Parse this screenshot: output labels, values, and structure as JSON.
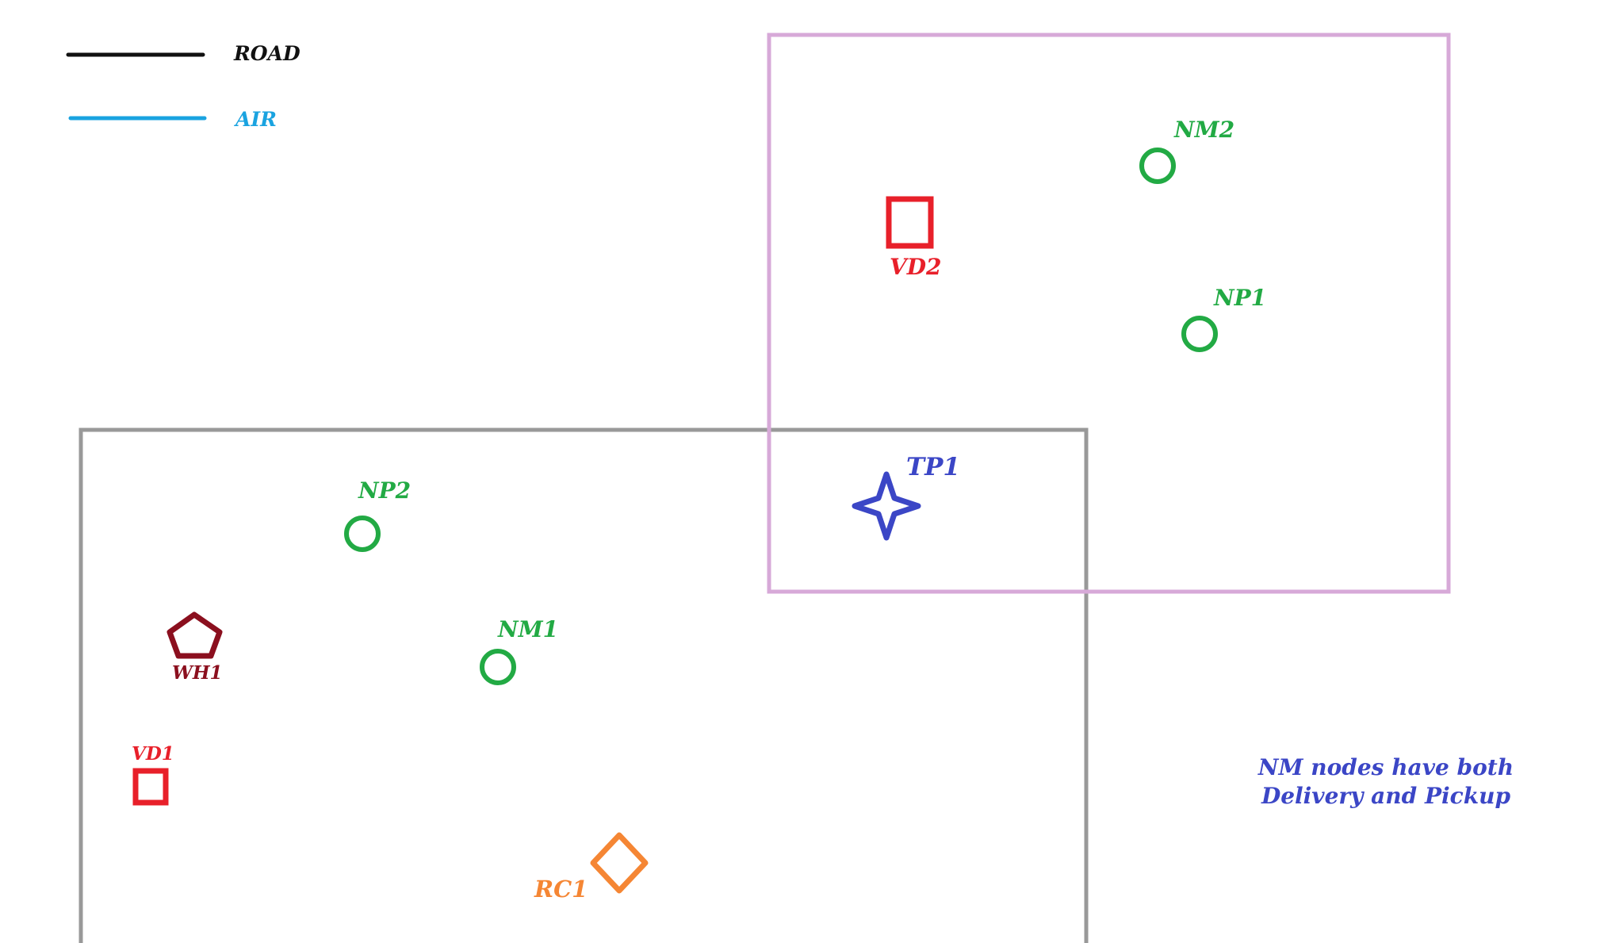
{
  "legend": {
    "road": {
      "label": "ROAD",
      "color": "#111111"
    },
    "air": {
      "label": "AIR",
      "color": "#1aa3e0"
    }
  },
  "zones": {
    "zone_a": {
      "color": "#999999"
    },
    "zone_b": {
      "color": "#d7a9d8"
    }
  },
  "nodes": {
    "nm2": {
      "label": "NM2",
      "kind": "circle",
      "color": "#22aa44"
    },
    "vd2": {
      "label": "VD2",
      "kind": "square",
      "color": "#e8202a"
    },
    "np1": {
      "label": "NP1",
      "kind": "circle",
      "color": "#22aa44"
    },
    "tp1": {
      "label": "TP1",
      "kind": "star",
      "color": "#3b46c6"
    },
    "np2": {
      "label": "NP2",
      "kind": "circle",
      "color": "#22aa44"
    },
    "wh1": {
      "label": "WH1",
      "kind": "pentagon",
      "color": "#8b0f1e"
    },
    "nm1": {
      "label": "NM1",
      "kind": "circle",
      "color": "#22aa44"
    },
    "vd1": {
      "label": "VD1",
      "kind": "square",
      "color": "#e8202a"
    },
    "rc1": {
      "label": "RC1",
      "kind": "diamond",
      "color": "#f58634"
    }
  },
  "note": {
    "line1": "NM nodes have both",
    "line2": "Delivery and Pickup",
    "color": "#3b46c6"
  }
}
